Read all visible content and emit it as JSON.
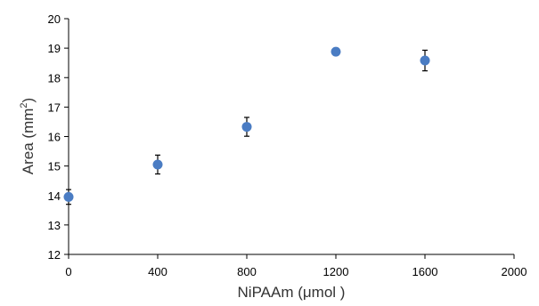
{
  "chart_data": {
    "type": "scatter",
    "title": "",
    "xlabel": "NiPAAm (μmol  )",
    "ylabel_main": "Area (mm",
    "ylabel_sup": "2",
    "ylabel_close": ")",
    "xlim": [
      0,
      2000
    ],
    "ylim": [
      12,
      20
    ],
    "xticks": [
      "0",
      "400",
      "800",
      "1200",
      "1600",
      "2000"
    ],
    "yticks": [
      "12",
      "13",
      "14",
      "15",
      "16",
      "17",
      "18",
      "19",
      "20"
    ],
    "grid": false,
    "legend": "none",
    "marker_color": "#4a7cc3",
    "series": [
      {
        "x": [
          0,
          400,
          800,
          1200,
          1600
        ],
        "y": [
          13.95,
          15.05,
          16.33,
          18.88,
          18.58
        ],
        "error": [
          0.25,
          0.32,
          0.32,
          0.08,
          0.35
        ]
      }
    ]
  }
}
